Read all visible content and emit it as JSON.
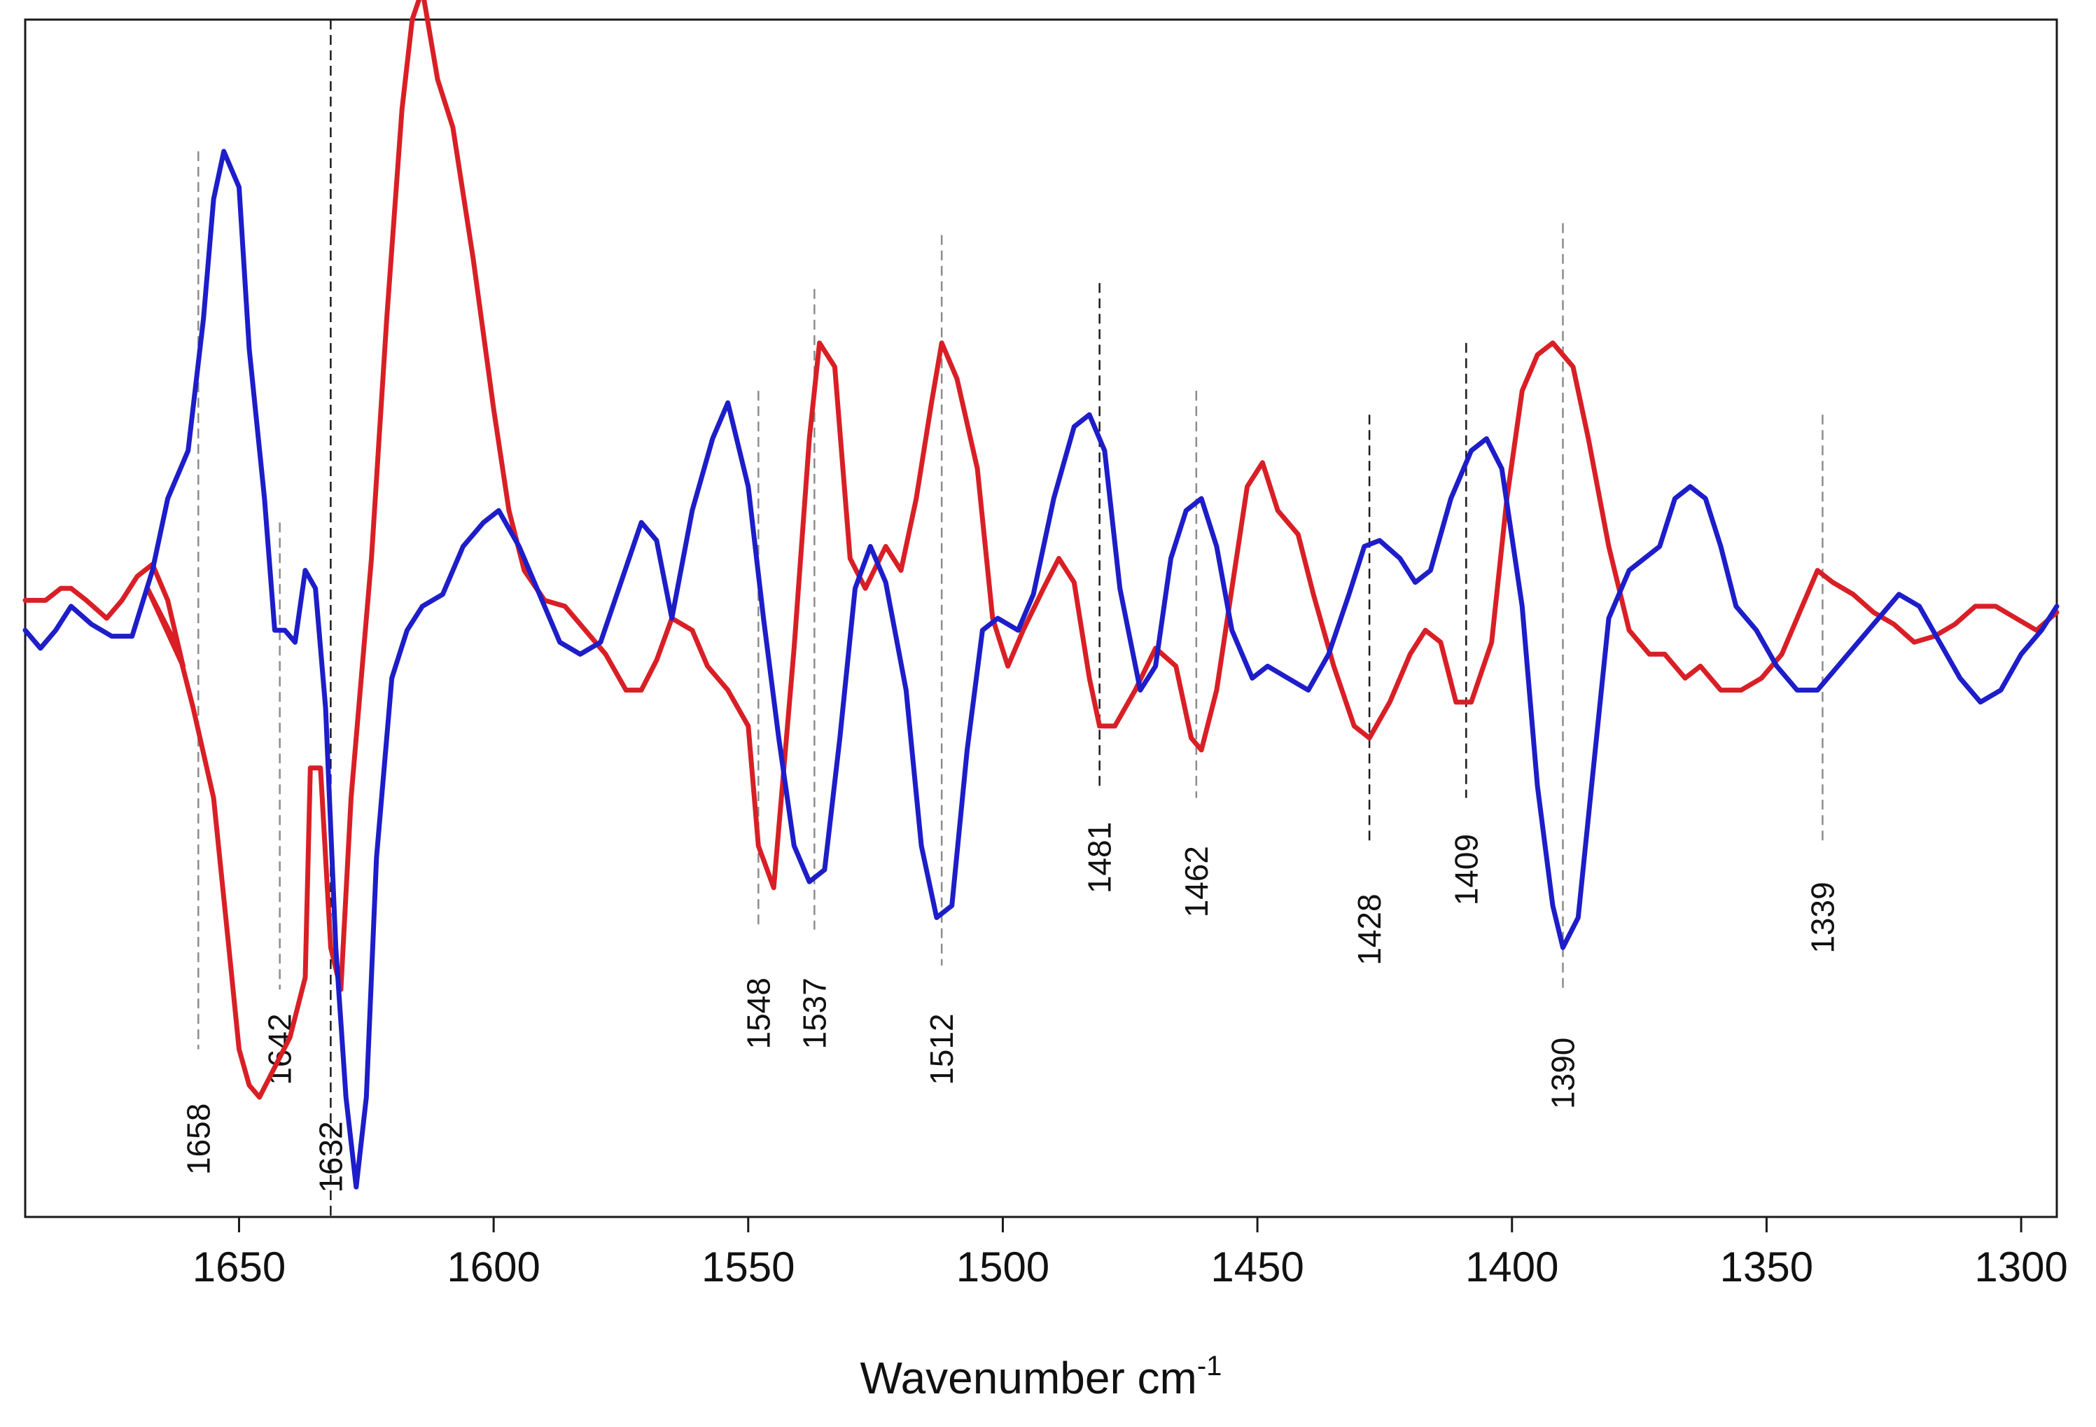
{
  "chart_data": {
    "type": "line",
    "title": "",
    "xlabel": "Wavenumber cm",
    "xlabel_superscript": "-1",
    "ylabel": "",
    "xlim": [
      1692,
      1293
    ],
    "ylim": [
      -1.0,
      1.0
    ],
    "x_reversed": true,
    "y_ticks_shown": false,
    "grid": false,
    "x_ticks": [
      1650,
      1600,
      1550,
      1500,
      1450,
      1400,
      1350,
      1300
    ],
    "x_tick_labels": [
      "1650",
      "1600",
      "1550",
      "1500",
      "1450",
      "1400",
      "1350",
      "1300"
    ],
    "series": [
      {
        "name": "red trace",
        "color": "#d91f26",
        "points": [
          [
            1692,
            0.03
          ],
          [
            1688,
            0.03
          ],
          [
            1685,
            0.05
          ],
          [
            1683,
            0.05
          ],
          [
            1680,
            0.03
          ],
          [
            1676,
            0.0
          ],
          [
            1673,
            0.03
          ],
          [
            1670,
            0.07
          ],
          [
            1667,
            0.09
          ],
          [
            1664,
            0.03
          ],
          [
            1661,
            -0.08
          ],
          [
            1668,
            0.05
          ],
          [
            1662,
            -0.05
          ],
          [
            1659,
            -0.15
          ],
          [
            1655,
            -0.3
          ],
          [
            1652,
            -0.55
          ],
          [
            1650,
            -0.72
          ],
          [
            1648,
            -0.78
          ],
          [
            1646,
            -0.8
          ],
          [
            1640,
            -0.7
          ],
          [
            1637,
            -0.6
          ],
          [
            1636,
            -0.25
          ],
          [
            1634,
            -0.25
          ],
          [
            1632,
            -0.55
          ],
          [
            1630,
            -0.62
          ],
          [
            1628,
            -0.3
          ],
          [
            1624,
            0.1
          ],
          [
            1621,
            0.5
          ],
          [
            1618,
            0.85
          ],
          [
            1616,
            1.0
          ],
          [
            1614,
            1.05
          ],
          [
            1611,
            0.9
          ],
          [
            1608,
            0.82
          ],
          [
            1604,
            0.6
          ],
          [
            1600,
            0.35
          ],
          [
            1597,
            0.18
          ],
          [
            1594,
            0.08
          ],
          [
            1590,
            0.03
          ],
          [
            1586,
            0.02
          ],
          [
            1582,
            -0.02
          ],
          [
            1578,
            -0.06
          ],
          [
            1574,
            -0.12
          ],
          [
            1571,
            -0.12
          ],
          [
            1568,
            -0.07
          ],
          [
            1565,
            0.0
          ],
          [
            1561,
            -0.02
          ],
          [
            1558,
            -0.08
          ],
          [
            1554,
            -0.12
          ],
          [
            1550,
            -0.18
          ],
          [
            1548,
            -0.38
          ],
          [
            1545,
            -0.45
          ],
          [
            1541,
            -0.05
          ],
          [
            1538,
            0.3
          ],
          [
            1536,
            0.46
          ],
          [
            1533,
            0.42
          ],
          [
            1530,
            0.1
          ],
          [
            1527,
            0.05
          ],
          [
            1523,
            0.12
          ],
          [
            1520,
            0.08
          ],
          [
            1517,
            0.2
          ],
          [
            1514,
            0.36
          ],
          [
            1512,
            0.46
          ],
          [
            1509,
            0.4
          ],
          [
            1505,
            0.25
          ],
          [
            1502,
            0.0
          ],
          [
            1499,
            -0.08
          ],
          [
            1496,
            -0.02
          ],
          [
            1492,
            0.05
          ],
          [
            1489,
            0.1
          ],
          [
            1486,
            0.06
          ],
          [
            1483,
            -0.1
          ],
          [
            1481,
            -0.18
          ],
          [
            1478,
            -0.18
          ],
          [
            1474,
            -0.12
          ],
          [
            1470,
            -0.05
          ],
          [
            1466,
            -0.08
          ],
          [
            1463,
            -0.2
          ],
          [
            1461,
            -0.22
          ],
          [
            1458,
            -0.12
          ],
          [
            1455,
            0.05
          ],
          [
            1452,
            0.22
          ],
          [
            1449,
            0.26
          ],
          [
            1446,
            0.18
          ],
          [
            1442,
            0.14
          ],
          [
            1439,
            0.04
          ],
          [
            1435,
            -0.08
          ],
          [
            1431,
            -0.18
          ],
          [
            1428,
            -0.2
          ],
          [
            1424,
            -0.14
          ],
          [
            1420,
            -0.06
          ],
          [
            1417,
            -0.02
          ],
          [
            1414,
            -0.04
          ],
          [
            1411,
            -0.14
          ],
          [
            1408,
            -0.14
          ],
          [
            1404,
            -0.04
          ],
          [
            1401,
            0.2
          ],
          [
            1398,
            0.38
          ],
          [
            1395,
            0.44
          ],
          [
            1392,
            0.46
          ],
          [
            1388,
            0.42
          ],
          [
            1385,
            0.3
          ],
          [
            1381,
            0.12
          ],
          [
            1377,
            -0.02
          ],
          [
            1373,
            -0.06
          ],
          [
            1370,
            -0.06
          ],
          [
            1366,
            -0.1
          ],
          [
            1363,
            -0.08
          ],
          [
            1359,
            -0.12
          ],
          [
            1355,
            -0.12
          ],
          [
            1351,
            -0.1
          ],
          [
            1347,
            -0.06
          ],
          [
            1343,
            0.02
          ],
          [
            1340,
            0.08
          ],
          [
            1337,
            0.06
          ],
          [
            1333,
            0.04
          ],
          [
            1329,
            0.01
          ],
          [
            1325,
            -0.01
          ],
          [
            1321,
            -0.04
          ],
          [
            1317,
            -0.03
          ],
          [
            1313,
            -0.01
          ],
          [
            1309,
            0.02
          ],
          [
            1305,
            0.02
          ],
          [
            1301,
            0.0
          ],
          [
            1297,
            -0.02
          ],
          [
            1293,
            0.01
          ]
        ]
      },
      {
        "name": "blue trace",
        "color": "#1d1dc9",
        "points": [
          [
            1692,
            -0.02
          ],
          [
            1689,
            -0.05
          ],
          [
            1686,
            -0.02
          ],
          [
            1683,
            0.02
          ],
          [
            1679,
            -0.01
          ],
          [
            1675,
            -0.03
          ],
          [
            1671,
            -0.03
          ],
          [
            1667,
            0.08
          ],
          [
            1664,
            0.2
          ],
          [
            1660,
            0.28
          ],
          [
            1657,
            0.5
          ],
          [
            1655,
            0.7
          ],
          [
            1653,
            0.78
          ],
          [
            1650,
            0.72
          ],
          [
            1648,
            0.45
          ],
          [
            1645,
            0.2
          ],
          [
            1643,
            -0.02
          ],
          [
            1641,
            -0.02
          ],
          [
            1639,
            -0.04
          ],
          [
            1637,
            0.08
          ],
          [
            1635,
            0.05
          ],
          [
            1633,
            -0.15
          ],
          [
            1631,
            -0.55
          ],
          [
            1629,
            -0.8
          ],
          [
            1627,
            -0.95
          ],
          [
            1625,
            -0.8
          ],
          [
            1623,
            -0.4
          ],
          [
            1620,
            -0.1
          ],
          [
            1617,
            -0.02
          ],
          [
            1614,
            0.02
          ],
          [
            1610,
            0.04
          ],
          [
            1606,
            0.12
          ],
          [
            1602,
            0.16
          ],
          [
            1599,
            0.18
          ],
          [
            1595,
            0.12
          ],
          [
            1591,
            0.04
          ],
          [
            1587,
            -0.04
          ],
          [
            1583,
            -0.06
          ],
          [
            1579,
            -0.04
          ],
          [
            1575,
            0.06
          ],
          [
            1571,
            0.16
          ],
          [
            1568,
            0.13
          ],
          [
            1565,
            0.0
          ],
          [
            1561,
            0.18
          ],
          [
            1557,
            0.3
          ],
          [
            1554,
            0.36
          ],
          [
            1550,
            0.22
          ],
          [
            1547,
            0.0
          ],
          [
            1544,
            -0.2
          ],
          [
            1541,
            -0.38
          ],
          [
            1538,
            -0.44
          ],
          [
            1535,
            -0.42
          ],
          [
            1532,
            -0.2
          ],
          [
            1529,
            0.05
          ],
          [
            1526,
            0.12
          ],
          [
            1523,
            0.06
          ],
          [
            1519,
            -0.12
          ],
          [
            1516,
            -0.38
          ],
          [
            1513,
            -0.5
          ],
          [
            1510,
            -0.48
          ],
          [
            1507,
            -0.22
          ],
          [
            1504,
            -0.02
          ],
          [
            1501,
            0.0
          ],
          [
            1497,
            -0.02
          ],
          [
            1494,
            0.04
          ],
          [
            1490,
            0.2
          ],
          [
            1486,
            0.32
          ],
          [
            1483,
            0.34
          ],
          [
            1480,
            0.28
          ],
          [
            1477,
            0.05
          ],
          [
            1473,
            -0.12
          ],
          [
            1470,
            -0.08
          ],
          [
            1467,
            0.1
          ],
          [
            1464,
            0.18
          ],
          [
            1461,
            0.2
          ],
          [
            1458,
            0.12
          ],
          [
            1455,
            -0.02
          ],
          [
            1451,
            -0.1
          ],
          [
            1448,
            -0.08
          ],
          [
            1444,
            -0.1
          ],
          [
            1440,
            -0.12
          ],
          [
            1436,
            -0.06
          ],
          [
            1432,
            0.04
          ],
          [
            1429,
            0.12
          ],
          [
            1426,
            0.13
          ],
          [
            1422,
            0.1
          ],
          [
            1419,
            0.06
          ],
          [
            1416,
            0.08
          ],
          [
            1412,
            0.2
          ],
          [
            1408,
            0.28
          ],
          [
            1405,
            0.3
          ],
          [
            1402,
            0.25
          ],
          [
            1398,
            0.02
          ],
          [
            1395,
            -0.28
          ],
          [
            1392,
            -0.48
          ],
          [
            1390,
            -0.55
          ],
          [
            1387,
            -0.5
          ],
          [
            1384,
            -0.25
          ],
          [
            1381,
            0.0
          ],
          [
            1377,
            0.08
          ],
          [
            1374,
            0.1
          ],
          [
            1371,
            0.12
          ],
          [
            1368,
            0.2
          ],
          [
            1365,
            0.22
          ],
          [
            1362,
            0.2
          ],
          [
            1359,
            0.12
          ],
          [
            1356,
            0.02
          ],
          [
            1352,
            -0.02
          ],
          [
            1348,
            -0.08
          ],
          [
            1344,
            -0.12
          ],
          [
            1340,
            -0.12
          ],
          [
            1336,
            -0.08
          ],
          [
            1332,
            -0.04
          ],
          [
            1328,
            0.0
          ],
          [
            1324,
            0.04
          ],
          [
            1320,
            0.02
          ],
          [
            1316,
            -0.04
          ],
          [
            1312,
            -0.1
          ],
          [
            1308,
            -0.14
          ],
          [
            1304,
            -0.12
          ],
          [
            1300,
            -0.06
          ],
          [
            1296,
            -0.02
          ],
          [
            1293,
            0.02
          ]
        ]
      }
    ],
    "annotations": [
      {
        "label": "1658",
        "x": 1658,
        "line_from": 0.78,
        "line_to": -0.72,
        "label_y": -0.87,
        "style": "dashed-gray"
      },
      {
        "label": "1642",
        "x": 1642,
        "line_from": 0.16,
        "line_to": -0.62,
        "label_y": -0.72,
        "style": "dashed-gray"
      },
      {
        "label": "1632",
        "x": 1632,
        "line_from": 1.0,
        "line_to": -1.0,
        "label_y": -0.9,
        "style": "dashed-black"
      },
      {
        "label": "1548",
        "x": 1548,
        "line_from": 0.38,
        "line_to": -0.52,
        "label_y": -0.66,
        "style": "dashed-gray"
      },
      {
        "label": "1537",
        "x": 1537,
        "line_from": 0.55,
        "line_to": -0.52,
        "label_y": -0.66,
        "style": "dashed-gray"
      },
      {
        "label": "1512",
        "x": 1512,
        "line_from": 0.64,
        "line_to": -0.58,
        "label_y": -0.72,
        "style": "dashed-gray"
      },
      {
        "label": "1481",
        "x": 1481,
        "line_from": 0.56,
        "line_to": -0.28,
        "label_y": -0.4,
        "style": "dashed-black"
      },
      {
        "label": "1462",
        "x": 1462,
        "line_from": 0.38,
        "line_to": -0.3,
        "label_y": -0.44,
        "style": "dashed-gray"
      },
      {
        "label": "1428",
        "x": 1428,
        "line_from": 0.34,
        "line_to": -0.38,
        "label_y": -0.52,
        "style": "dashed-black"
      },
      {
        "label": "1409",
        "x": 1409,
        "line_from": 0.46,
        "line_to": -0.3,
        "label_y": -0.42,
        "style": "dashed-black"
      },
      {
        "label": "1390",
        "x": 1390,
        "line_from": 0.66,
        "line_to": -0.62,
        "label_y": -0.76,
        "style": "dashed-gray"
      },
      {
        "label": "1339",
        "x": 1339,
        "line_from": 0.34,
        "line_to": -0.38,
        "label_y": -0.5,
        "style": "dashed-gray"
      }
    ]
  },
  "colors": {
    "axis": "#1a1a1a",
    "dashed_gray": "#8c8c8c",
    "dashed_black": "#1a1a1a"
  }
}
